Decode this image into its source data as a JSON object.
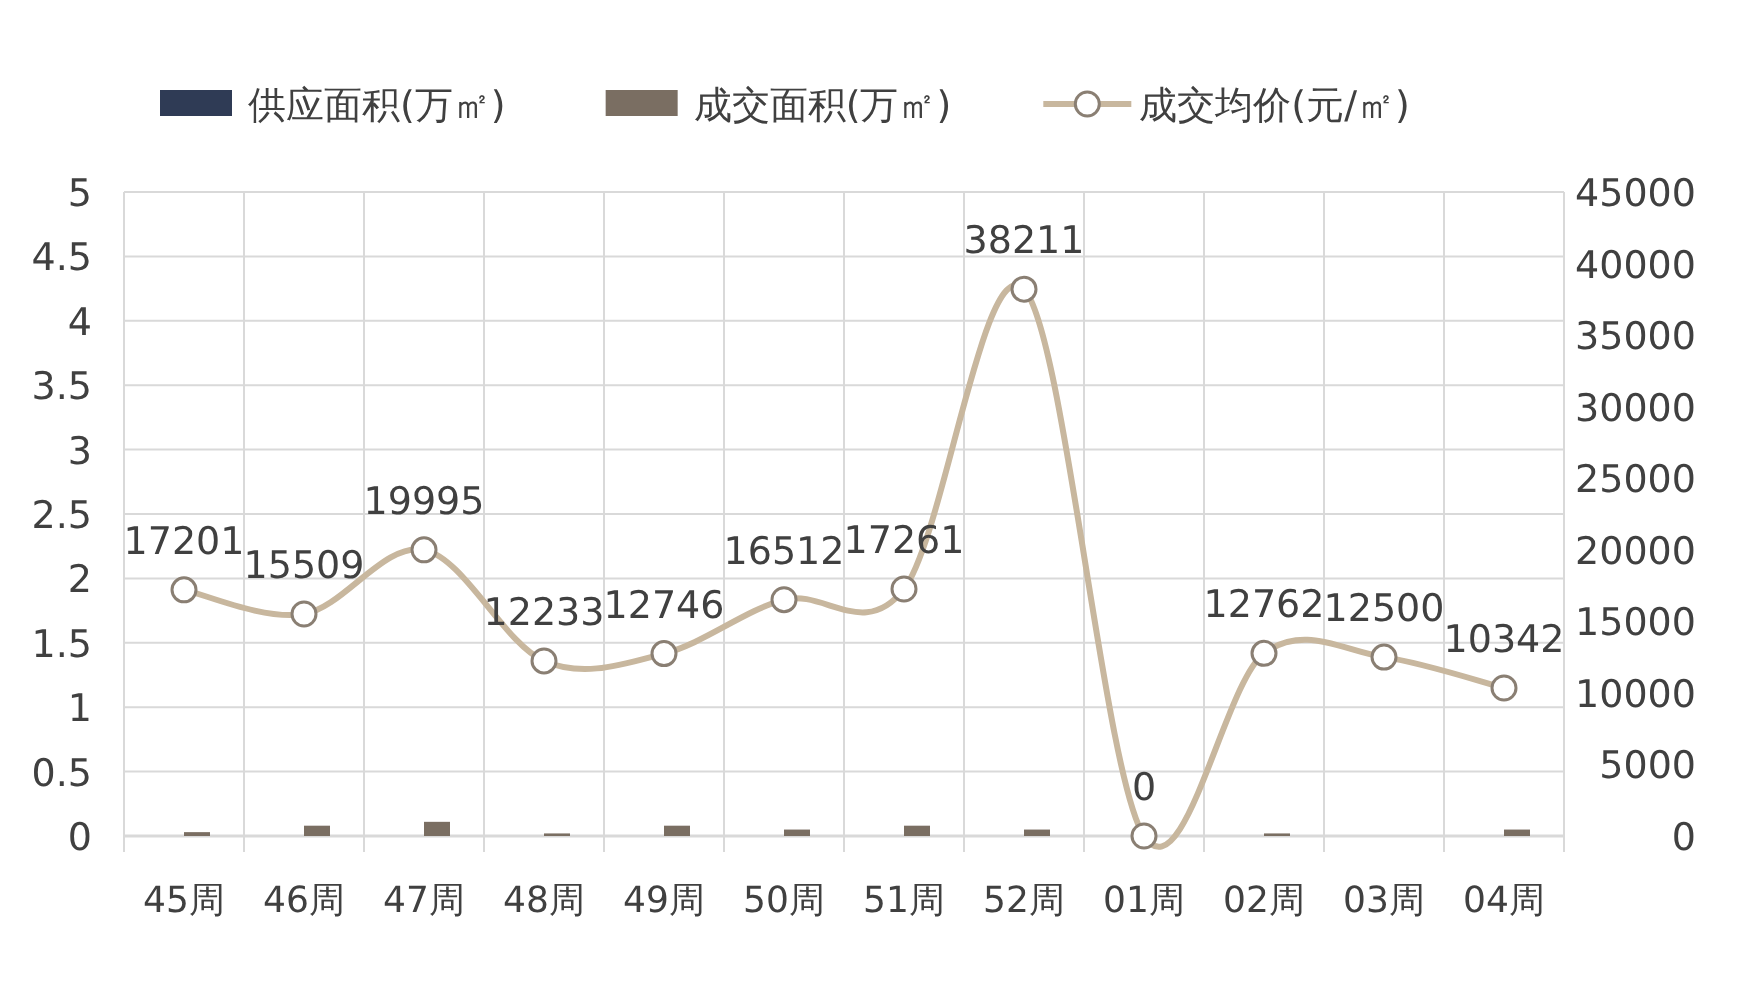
{
  "chart_data": {
    "type": "bar",
    "categories": [
      "45周",
      "46周",
      "47周",
      "48周",
      "49周",
      "50周",
      "51周",
      "52周",
      "01周",
      "02周",
      "03周",
      "04周"
    ],
    "series": [
      {
        "name": "供应面积(万㎡)",
        "color": "#2f3b55",
        "values": [
          0,
          0,
          0,
          0,
          0,
          0,
          0,
          0,
          0,
          0,
          0,
          0
        ]
      },
      {
        "name": "成交面积(万㎡)",
        "color": "#7a6e62",
        "values": [
          0.03,
          0.08,
          0.11,
          0.02,
          0.08,
          0.05,
          0.08,
          0.05,
          0,
          0.02,
          0,
          0.05
        ]
      },
      {
        "name": "成交均价(元/㎡)",
        "type": "line",
        "axis": "y2",
        "color": "#c8b79e",
        "marker": "circle",
        "values": [
          17201,
          15509,
          19995,
          12233,
          12746,
          16512,
          17261,
          38211,
          0,
          12762,
          12500,
          10342
        ],
        "value_labels": [
          "17201",
          "15509",
          "19995",
          "12233",
          "12746",
          "16512",
          "17261",
          "38211",
          "0",
          "12762",
          "12500",
          "10342"
        ]
      }
    ],
    "ylim": [
      0,
      5
    ],
    "yticks": [
      0,
      0.5,
      1,
      1.5,
      2,
      2.5,
      3,
      3.5,
      4,
      4.5,
      5
    ],
    "y2lim": [
      0,
      45000
    ],
    "y2ticks": [
      0,
      5000,
      10000,
      15000,
      20000,
      25000,
      30000,
      35000,
      40000,
      45000
    ],
    "grid": true,
    "legend": "top"
  }
}
